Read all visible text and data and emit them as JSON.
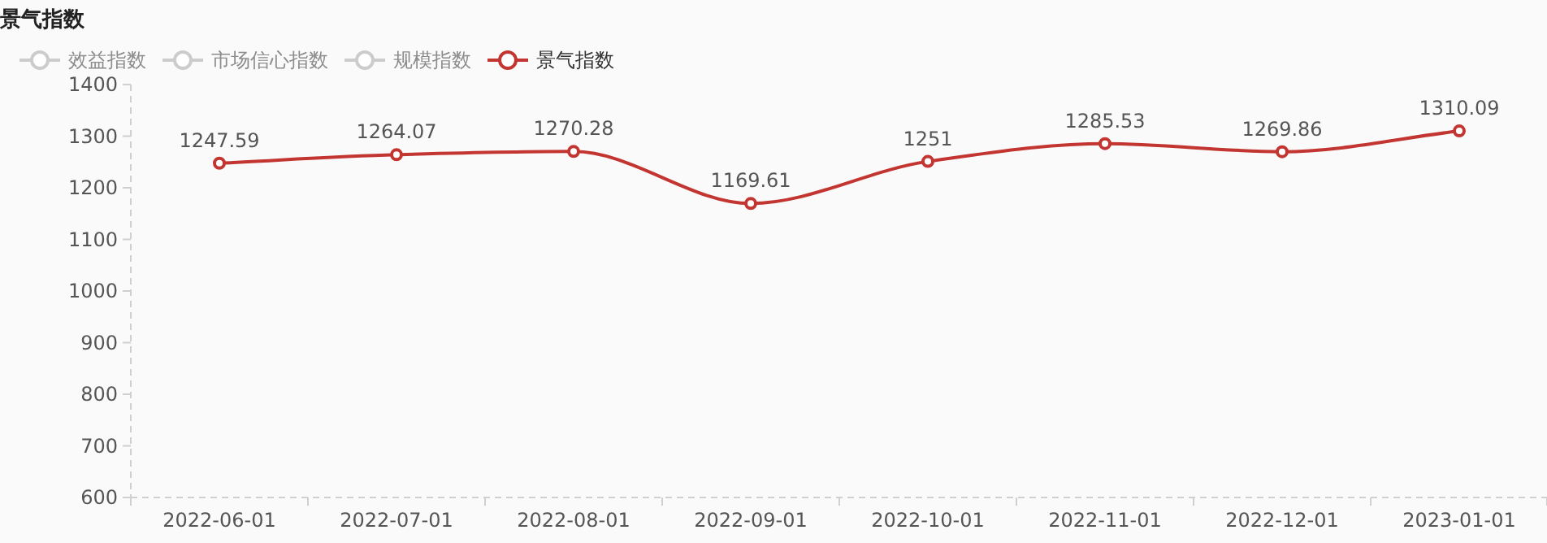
{
  "chart_data": {
    "type": "line",
    "title": "景气指数",
    "categories": [
      "2022-06-01",
      "2022-07-01",
      "2022-08-01",
      "2022-09-01",
      "2022-10-01",
      "2022-11-01",
      "2022-12-01",
      "2023-01-01"
    ],
    "series": [
      {
        "name": "效益指数",
        "color": "#cccccc",
        "values": [
          null,
          null,
          null,
          null,
          null,
          null,
          null,
          null
        ]
      },
      {
        "name": "市场信心指数",
        "color": "#cccccc",
        "values": [
          null,
          null,
          null,
          null,
          null,
          null,
          null,
          null
        ]
      },
      {
        "name": "规模指数",
        "color": "#cccccc",
        "values": [
          null,
          null,
          null,
          null,
          null,
          null,
          null,
          null
        ]
      },
      {
        "name": "景气指数",
        "color": "#c23531",
        "values": [
          1247.59,
          1264.07,
          1270.28,
          1169.61,
          1251,
          1285.53,
          1269.86,
          1310.09
        ]
      }
    ],
    "ylim": [
      600,
      1400
    ],
    "yticks": [
      600,
      700,
      800,
      900,
      1000,
      1100,
      1200,
      1300,
      1400
    ],
    "data_labels": true,
    "legend": "top left",
    "marker": "circle",
    "line_style": "solid",
    "grid": false
  }
}
